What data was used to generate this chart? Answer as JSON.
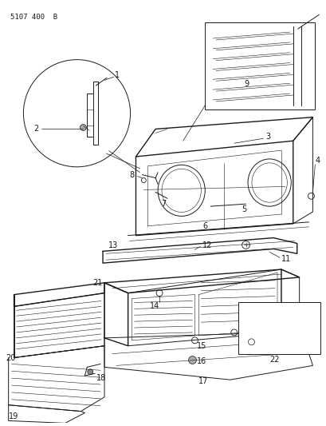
{
  "title": "5107 400  B",
  "background_color": "#ffffff",
  "line_color": "#1a1a1a",
  "fig_width": 4.1,
  "fig_height": 5.33,
  "dpi": 100
}
